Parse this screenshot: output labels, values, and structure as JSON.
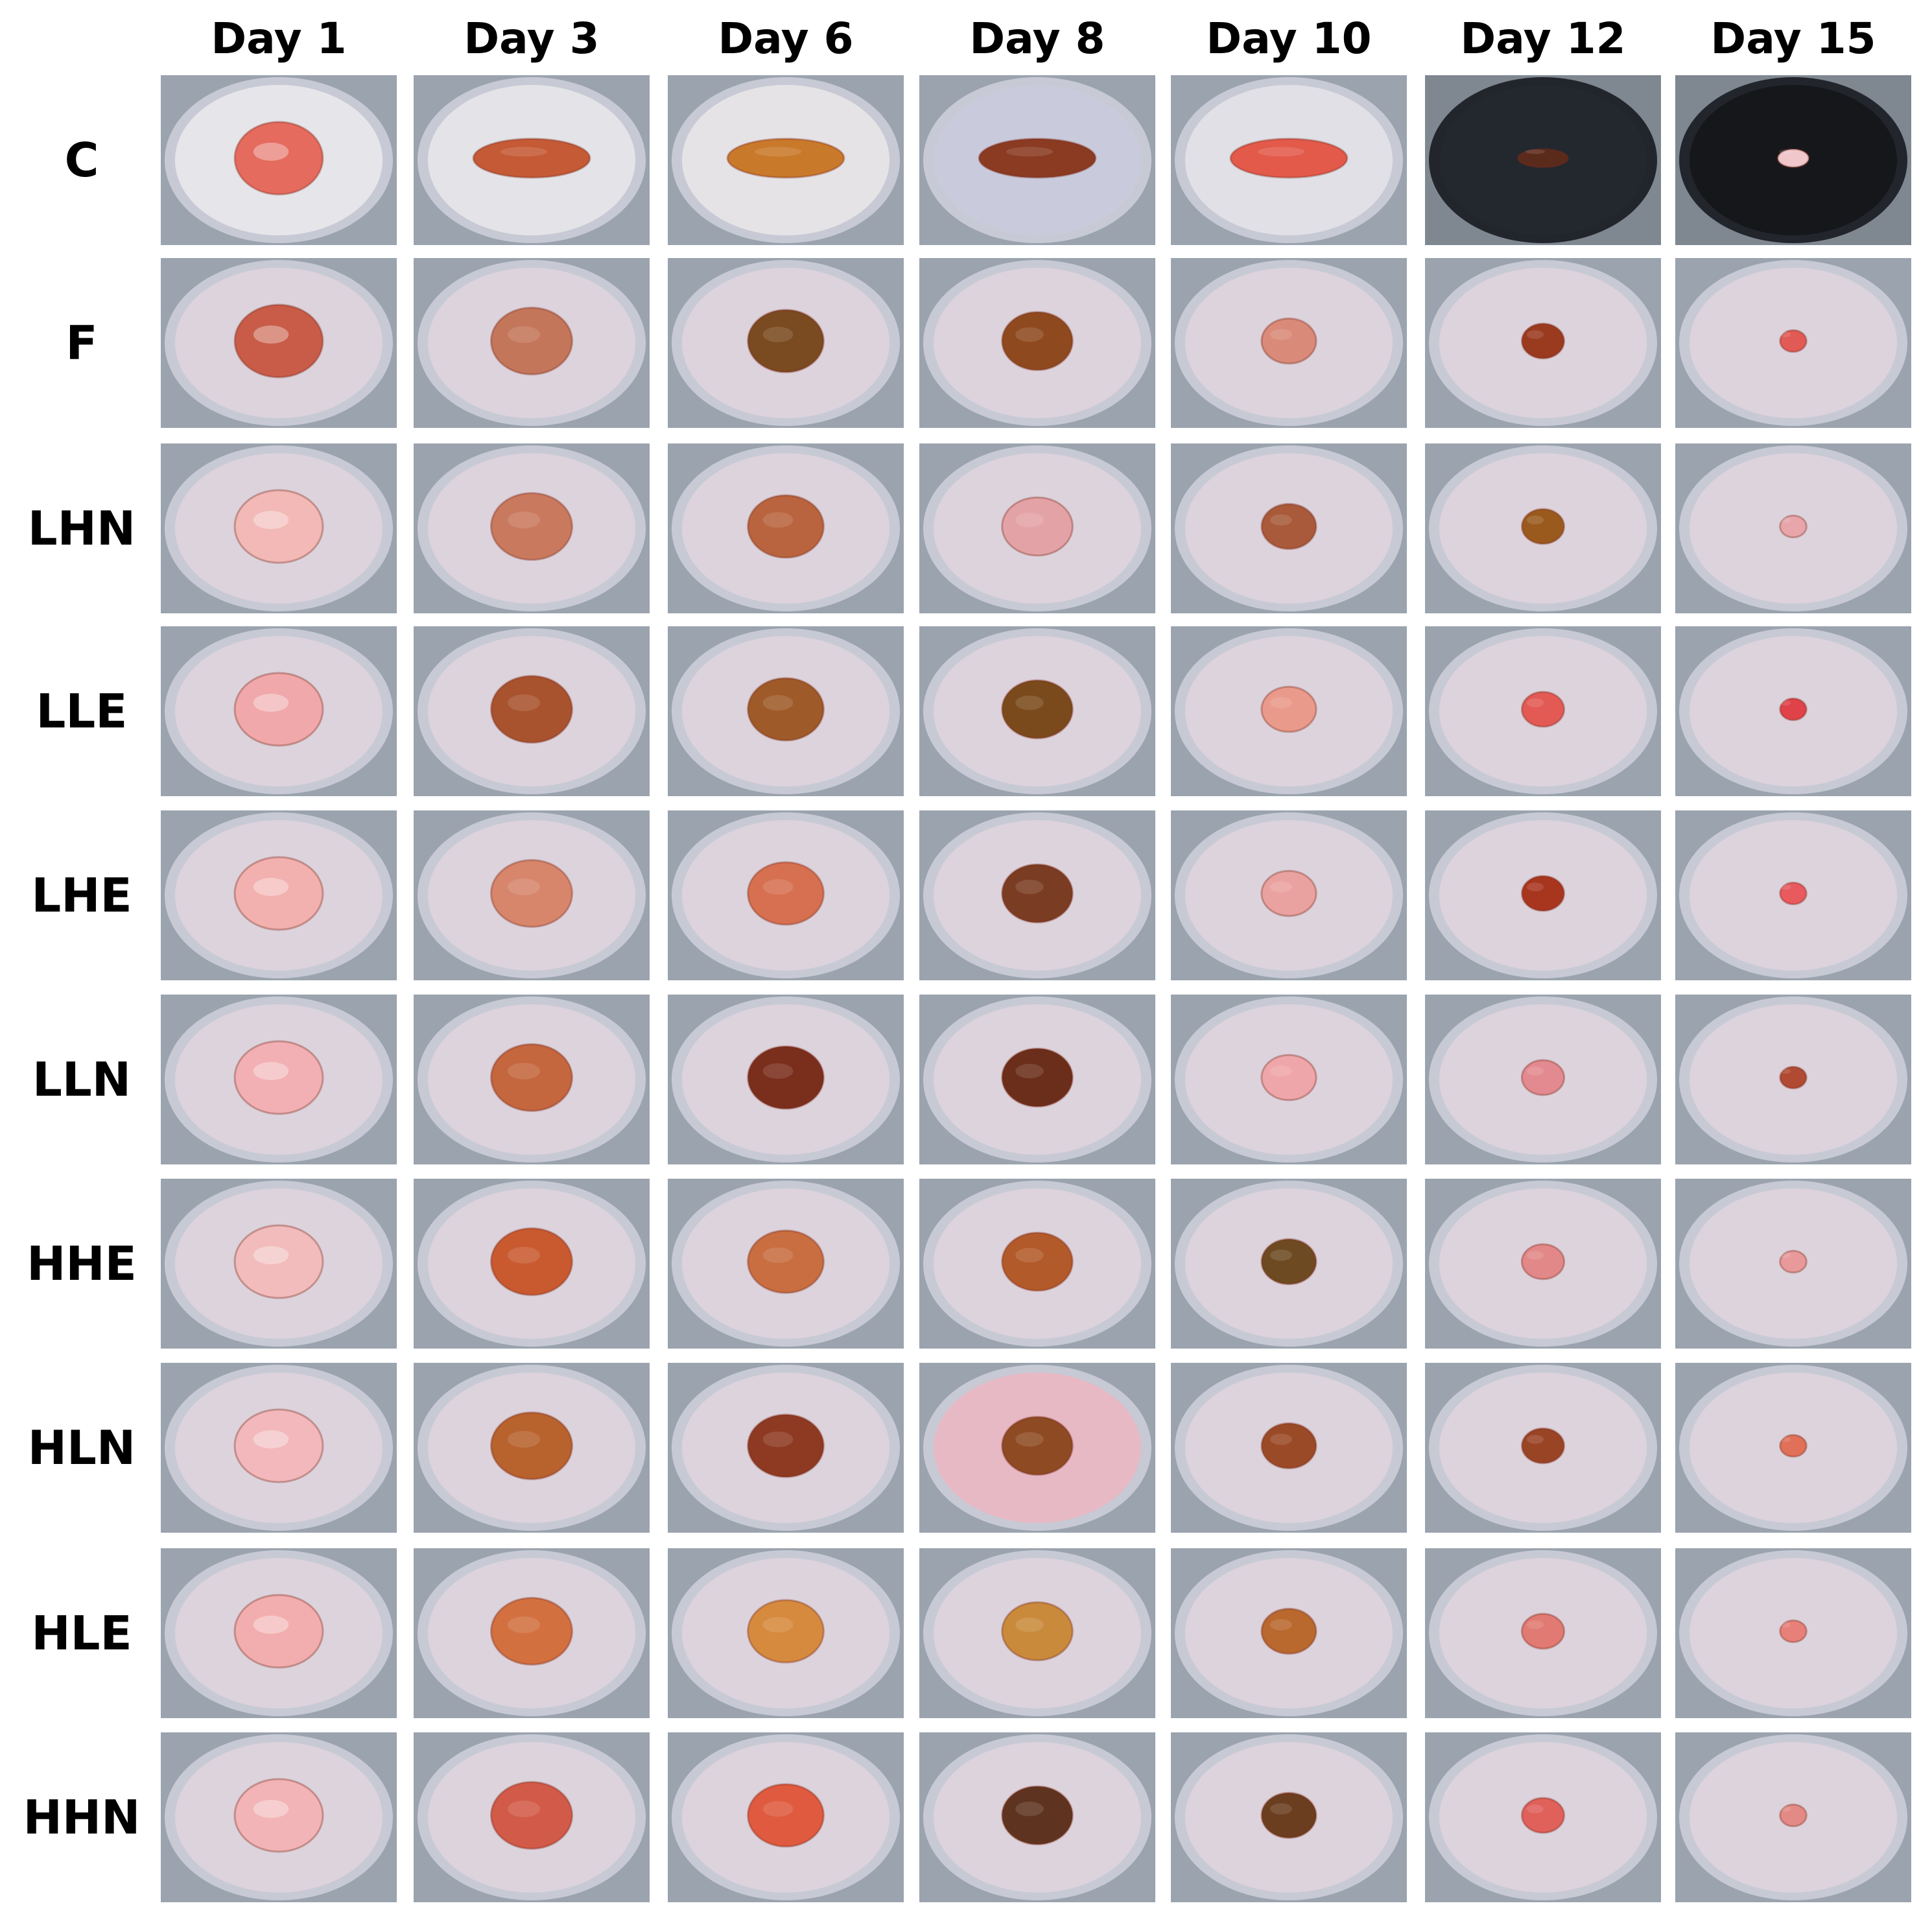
{
  "figure": {
    "columns": [
      "Day 1",
      "Day 3",
      "Day 6",
      "Day 8",
      "Day 10",
      "Day 12",
      "Day 15"
    ],
    "rows": [
      "C",
      "F",
      "LHN",
      "LLE",
      "LHE",
      "LLN",
      "HHE",
      "HLN",
      "HLE",
      "HHN"
    ],
    "tiles": [
      [
        "rodent-wound-photo-day-1",
        "rodent-wound-photo-day-3",
        "rodent-wound-photo-day-6",
        "rodent-wound-photo-day-8",
        "rodent-wound-photo-day-10",
        "rodent-wound-photo-day-12",
        "rodent-wound-photo-day-15"
      ]
    ]
  }
}
